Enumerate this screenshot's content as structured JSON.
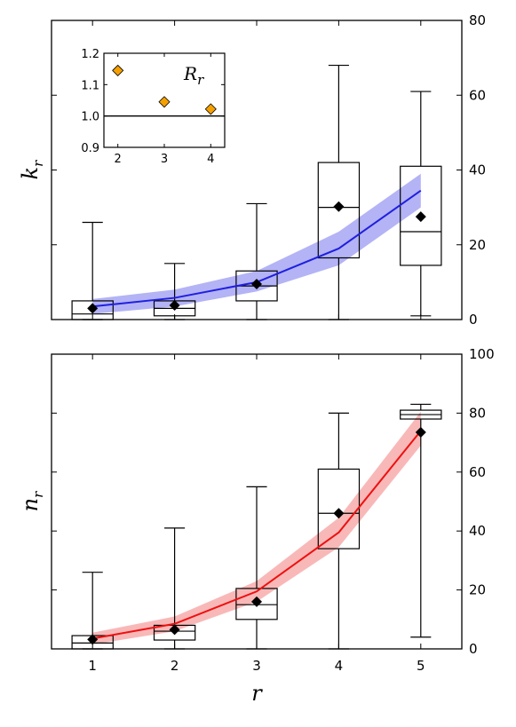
{
  "chart_data": [
    {
      "type": "box",
      "panel": "top",
      "ylabel": {
        "main": "k",
        "sub": "r"
      },
      "xlim": [
        0.5,
        5.5
      ],
      "ylim": [
        0,
        80
      ],
      "yticks": [
        "0",
        "20",
        "40",
        "60",
        "80"
      ],
      "y_axis_side": "right",
      "boxes": [
        {
          "x": 1,
          "whislo": 0,
          "q1": 0,
          "median": 1.5,
          "q3": 5,
          "whishi": 26,
          "mean": 3.0
        },
        {
          "x": 2,
          "whislo": 0,
          "q1": 1,
          "median": 3,
          "q3": 5,
          "whishi": 15,
          "mean": 3.8
        },
        {
          "x": 3,
          "whislo": 0,
          "q1": 5,
          "median": 9,
          "q3": 13,
          "whishi": 31,
          "mean": 9.5
        },
        {
          "x": 4,
          "whislo": 0,
          "q1": 16.5,
          "median": 30,
          "q3": 42,
          "whishi": 68,
          "mean": 30.2
        },
        {
          "x": 5,
          "whislo": 1,
          "q1": 14.5,
          "median": 23.5,
          "q3": 41,
          "whishi": 61,
          "mean": 27.5
        }
      ],
      "model_line": {
        "color": "#1f1fe0",
        "band_color": "#8080f0",
        "x": [
          1,
          2,
          3,
          4,
          5
        ],
        "y": [
          3.5,
          5.8,
          10.0,
          19.0,
          34.5
        ],
        "lower": [
          1.5,
          3.5,
          7.5,
          14.5,
          30.0
        ],
        "upper": [
          5.5,
          8.0,
          13.0,
          23.5,
          39.0
        ]
      },
      "inset": {
        "type": "scatter",
        "label": {
          "main": "R",
          "sub": "r"
        },
        "xlim": [
          1.7,
          4.3
        ],
        "ylim": [
          0.9,
          1.2
        ],
        "xticks": [
          "2",
          "3",
          "4"
        ],
        "yticks": [
          "0.9",
          "1.0",
          "1.1",
          "1.2"
        ],
        "x": [
          2,
          3,
          4
        ],
        "y": [
          1.145,
          1.045,
          1.022
        ],
        "hline": 1.0,
        "marker_color": "#f5a000"
      }
    },
    {
      "type": "box",
      "panel": "bottom",
      "ylabel": {
        "main": "n",
        "sub": "r"
      },
      "xlabel": "r",
      "xlim": [
        0.5,
        5.5
      ],
      "ylim": [
        0,
        100
      ],
      "yticks": [
        "0",
        "20",
        "40",
        "60",
        "80",
        "100"
      ],
      "xticks": [
        "1",
        "2",
        "3",
        "4",
        "5"
      ],
      "y_axis_side": "right",
      "boxes": [
        {
          "x": 1,
          "whislo": 0,
          "q1": 0,
          "median": 2,
          "q3": 4.5,
          "whishi": 26,
          "mean": 3.2
        },
        {
          "x": 2,
          "whislo": 0,
          "q1": 3,
          "median": 6,
          "q3": 8,
          "whishi": 41,
          "mean": 6.5
        },
        {
          "x": 3,
          "whislo": 0,
          "q1": 10,
          "median": 15,
          "q3": 20.5,
          "whishi": 55,
          "mean": 16.0
        },
        {
          "x": 4,
          "whislo": 0,
          "q1": 34,
          "median": 46,
          "q3": 61,
          "whishi": 80,
          "mean": 46.0
        },
        {
          "x": 5,
          "whislo": 4,
          "q1": 78,
          "median": 79.5,
          "q3": 81,
          "whishi": 83,
          "mean": 73.5
        }
      ],
      "model_line": {
        "color": "#ee1010",
        "band_color": "#f58888",
        "x": [
          1,
          2,
          3,
          4,
          5
        ],
        "y": [
          3.5,
          8.5,
          19.5,
          39.5,
          74.0
        ],
        "lower": [
          1.5,
          6.0,
          16.0,
          34.5,
          69.0
        ],
        "upper": [
          5.5,
          11.0,
          23.0,
          44.5,
          80.5
        ]
      }
    }
  ]
}
